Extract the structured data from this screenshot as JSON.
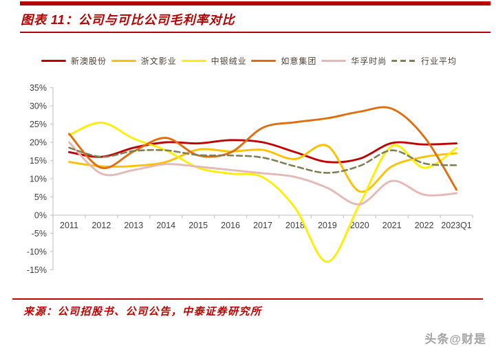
{
  "header": {
    "title": "图表 11：公司与可比公司毛利率对比"
  },
  "footer": {
    "source": "来源：公司招股书、公司公告，中泰证券研究所",
    "watermark": "头条@财是"
  },
  "colors": {
    "accent_red": "#b60000",
    "source_red": "#c00000",
    "axis_line": "#c9c9c9",
    "axis_text": "#3d3d3d",
    "watermark_gray": "#a3a3a3"
  },
  "chart_data": {
    "type": "line",
    "title": "公司与可比公司毛利率对比",
    "xlabel": "",
    "ylabel": "",
    "categories": [
      "2011",
      "2012",
      "2013",
      "2014",
      "2015",
      "2016",
      "2017",
      "2018",
      "2019",
      "2020",
      "2021",
      "2022",
      "2023Q1"
    ],
    "series": [
      {
        "name": "新澳股份",
        "color": "#c00000",
        "dash": false,
        "values": [
          17.3,
          16.0,
          18.5,
          20.0,
          19.7,
          20.6,
          20.0,
          17.3,
          14.6,
          15.5,
          19.8,
          19.4,
          19.7
        ]
      },
      {
        "name": "浙文影业",
        "color": "#ffc000",
        "dash": false,
        "values": [
          14.6,
          13.4,
          13.5,
          14.6,
          18.0,
          17.5,
          17.9,
          15.4,
          19.0,
          6.5,
          13.4,
          16.0,
          17.0
        ]
      },
      {
        "name": "中银绒业",
        "color": "#ffee00",
        "dash": false,
        "values": [
          22.0,
          25.4,
          21.0,
          17.8,
          13.0,
          11.4,
          10.4,
          2.0,
          -12.8,
          3.0,
          19.0,
          13.0,
          18.4
        ]
      },
      {
        "name": "如意集团",
        "color": "#e26b0a",
        "dash": false,
        "values": [
          22.3,
          13.0,
          17.5,
          21.2,
          16.4,
          17.2,
          24.0,
          25.5,
          26.6,
          28.4,
          29.2,
          21.5,
          7.0
        ]
      },
      {
        "name": "华孚时尚",
        "color": "#e4b8b4",
        "dash": false,
        "values": [
          20.0,
          11.4,
          12.4,
          14.0,
          13.3,
          12.4,
          11.5,
          10.5,
          7.5,
          3.0,
          9.4,
          5.6,
          6.0
        ]
      },
      {
        "name": "行业平均",
        "color": "#7f7f55",
        "dash": true,
        "values": [
          18.5,
          16.0,
          17.6,
          17.8,
          16.5,
          16.4,
          15.8,
          13.4,
          11.6,
          13.5,
          17.8,
          14.2,
          13.7
        ]
      }
    ],
    "ylim": [
      -15,
      35
    ],
    "ytick_step": 5,
    "ytick_labels": [
      "35%",
      "30%",
      "25%",
      "20%",
      "15%",
      "10%",
      "5%",
      "0%",
      "-5%",
      "-10%",
      "-15%"
    ],
    "grid": false,
    "legend_position": "top"
  }
}
